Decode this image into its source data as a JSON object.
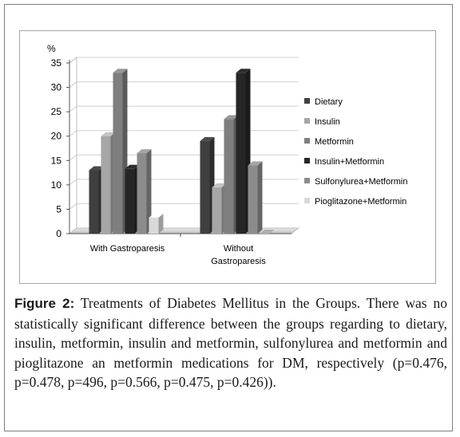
{
  "chart_data": {
    "type": "bar",
    "ylabel": "%",
    "ylim": [
      0,
      35
    ],
    "yticks": [
      0,
      5,
      10,
      15,
      20,
      25,
      30,
      35
    ],
    "grid": true,
    "legend_position": "right",
    "categories": [
      "With Gastroparesis",
      "Without Gastroparesis"
    ],
    "category_label_lines": [
      [
        "With Gastroparesis"
      ],
      [
        "Without",
        "Gastroparesis"
      ]
    ],
    "series": [
      {
        "name": "Dietary",
        "values": [
          13,
          19
        ],
        "color": "#3f3f3f"
      },
      {
        "name": "Insulin",
        "values": [
          20,
          9.5
        ],
        "color": "#a6a6a6"
      },
      {
        "name": "Metformin",
        "values": [
          33,
          23.5
        ],
        "color": "#7f7f7f"
      },
      {
        "name": "Insulin+Metformin",
        "values": [
          13.3,
          33
        ],
        "color": "#262626"
      },
      {
        "name": "Sulfonylurea+Metformin",
        "values": [
          16.5,
          14
        ],
        "color": "#8c8c8c"
      },
      {
        "name": "Pioglitazone+Metformin",
        "values": [
          3.3,
          0
        ],
        "color": "#d9d9d9"
      }
    ]
  },
  "caption": {
    "label": "Figure 2:",
    "text": " Treatments of Diabetes Mellitus in the Groups. There was no statistically significant difference between the groups regarding to dietary, insulin, metformin, insulin and metformin, sulfonylurea and metformin and pioglitazone an metformin medications for DM, respectively (p=0.476, p=0.478, p=496, p=0.566, p=0.475, p=0.426))."
  }
}
